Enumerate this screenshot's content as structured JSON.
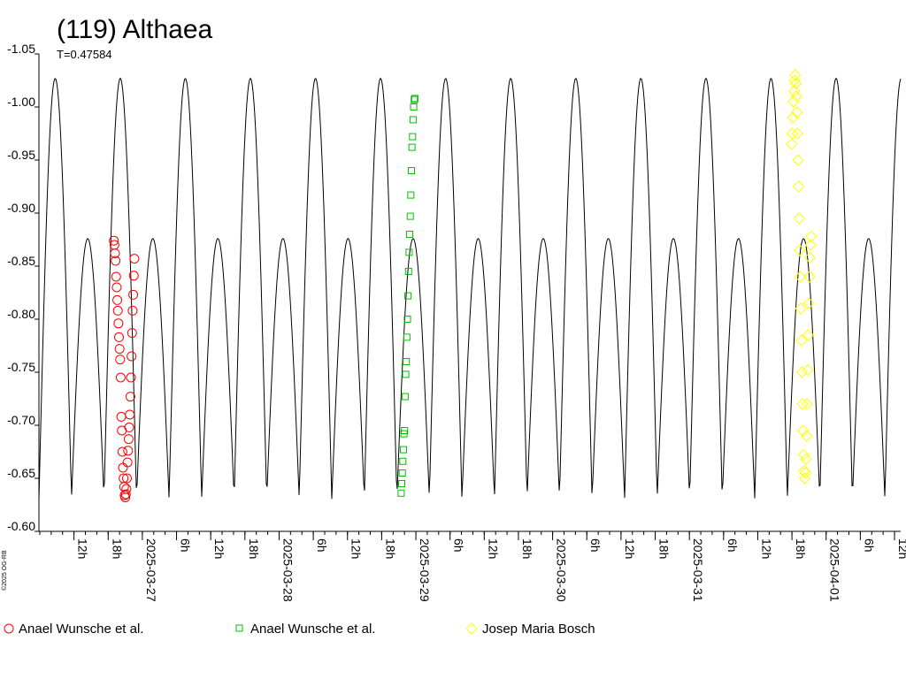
{
  "chart_data": {
    "type": "scatter",
    "title": "(119) Althaea",
    "subtitle": "T=0.47584",
    "copyright": "©2025 OG-RB",
    "y_axis": {
      "ticks": [
        "-1.05",
        "-1.00",
        "-0.95",
        "-0.90",
        "-0.85",
        "-0.80",
        "-0.75",
        "-0.70",
        "-0.65",
        "-0.60"
      ],
      "range": [
        -1.05,
        -0.6
      ],
      "inverted": true
    },
    "x_axis": {
      "range": [
        "2025-03-26T05:51",
        "2025-04-01T13:05"
      ],
      "tick_labels": [
        {
          "t": "2025-03-26T12:00",
          "label": "12h"
        },
        {
          "t": "2025-03-26T18:00",
          "label": "18h"
        },
        {
          "t": "2025-03-27T00:00",
          "label": "2025-03-27"
        },
        {
          "t": "2025-03-27T06:00",
          "label": "6h"
        },
        {
          "t": "2025-03-27T12:00",
          "label": "12h"
        },
        {
          "t": "2025-03-27T18:00",
          "label": "18h"
        },
        {
          "t": "2025-03-28T00:00",
          "label": "2025-03-28"
        },
        {
          "t": "2025-03-28T06:00",
          "label": "6h"
        },
        {
          "t": "2025-03-28T12:00",
          "label": "12h"
        },
        {
          "t": "2025-03-28T18:00",
          "label": "18h"
        },
        {
          "t": "2025-03-29T00:00",
          "label": "2025-03-29"
        },
        {
          "t": "2025-03-29T06:00",
          "label": "6h"
        },
        {
          "t": "2025-03-29T12:00",
          "label": "12h"
        },
        {
          "t": "2025-03-29T18:00",
          "label": "18h"
        },
        {
          "t": "2025-03-30T00:00",
          "label": "2025-03-30"
        },
        {
          "t": "2025-03-30T06:00",
          "label": "6h"
        },
        {
          "t": "2025-03-30T12:00",
          "label": "12h"
        },
        {
          "t": "2025-03-30T18:00",
          "label": "18h"
        },
        {
          "t": "2025-03-31T00:00",
          "label": "2025-03-31"
        },
        {
          "t": "2025-03-31T06:00",
          "label": "6h"
        },
        {
          "t": "2025-03-31T12:00",
          "label": "12h"
        },
        {
          "t": "2025-03-31T18:00",
          "label": "18h"
        },
        {
          "t": "2025-04-01T00:00",
          "label": "2025-04-01"
        },
        {
          "t": "2025-04-01T06:00",
          "label": "6h"
        },
        {
          "t": "2025-04-01T12:00",
          "label": "12h"
        }
      ]
    },
    "model_curve": {
      "period_hours": 11.4202,
      "ref_time": "2025-03-26T05:51",
      "min_value": -0.63,
      "max_value": -1.027,
      "secondary_max_value": -0.876,
      "color": "#000000"
    },
    "series": [
      {
        "name": "Anael Wunsche et al.",
        "marker": "circle",
        "color": "#ff0000",
        "points": [
          {
            "t": "2025-03-26T19:00",
            "y": -0.874
          },
          {
            "t": "2025-03-26T19:06",
            "y": -0.87
          },
          {
            "t": "2025-03-26T19:12",
            "y": -0.862
          },
          {
            "t": "2025-03-26T19:18",
            "y": -0.855
          },
          {
            "t": "2025-03-26T19:24",
            "y": -0.84
          },
          {
            "t": "2025-03-26T19:30",
            "y": -0.83
          },
          {
            "t": "2025-03-26T19:36",
            "y": -0.818
          },
          {
            "t": "2025-03-26T19:42",
            "y": -0.808
          },
          {
            "t": "2025-03-26T19:48",
            "y": -0.796
          },
          {
            "t": "2025-03-26T19:54",
            "y": -0.783
          },
          {
            "t": "2025-03-26T20:00",
            "y": -0.772
          },
          {
            "t": "2025-03-26T20:06",
            "y": -0.762
          },
          {
            "t": "2025-03-26T20:12",
            "y": -0.745
          },
          {
            "t": "2025-03-26T20:18",
            "y": -0.708
          },
          {
            "t": "2025-03-26T20:24",
            "y": -0.695
          },
          {
            "t": "2025-03-26T20:30",
            "y": -0.675
          },
          {
            "t": "2025-03-26T20:36",
            "y": -0.66
          },
          {
            "t": "2025-03-26T20:42",
            "y": -0.65
          },
          {
            "t": "2025-03-26T20:48",
            "y": -0.642
          },
          {
            "t": "2025-03-26T20:54",
            "y": -0.634
          },
          {
            "t": "2025-03-26T21:00",
            "y": -0.632
          },
          {
            "t": "2025-03-26T21:06",
            "y": -0.635
          },
          {
            "t": "2025-03-26T21:12",
            "y": -0.64
          },
          {
            "t": "2025-03-26T21:18",
            "y": -0.65
          },
          {
            "t": "2025-03-26T21:24",
            "y": -0.665
          },
          {
            "t": "2025-03-26T21:30",
            "y": -0.676
          },
          {
            "t": "2025-03-26T21:36",
            "y": -0.687
          },
          {
            "t": "2025-03-26T21:42",
            "y": -0.698
          },
          {
            "t": "2025-03-26T21:48",
            "y": -0.71
          },
          {
            "t": "2025-03-26T21:54",
            "y": -0.727
          },
          {
            "t": "2025-03-26T22:00",
            "y": -0.745
          },
          {
            "t": "2025-03-26T22:06",
            "y": -0.765
          },
          {
            "t": "2025-03-26T22:12",
            "y": -0.787
          },
          {
            "t": "2025-03-26T22:18",
            "y": -0.808
          },
          {
            "t": "2025-03-26T22:24",
            "y": -0.823
          },
          {
            "t": "2025-03-26T22:30",
            "y": -0.841
          },
          {
            "t": "2025-03-26T22:36",
            "y": -0.857
          }
        ]
      },
      {
        "name": "Anael Wunsche et al.",
        "marker": "square",
        "color": "#00c000",
        "points": [
          {
            "t": "2025-03-28T21:25",
            "y": -0.636
          },
          {
            "t": "2025-03-28T21:31",
            "y": -0.645
          },
          {
            "t": "2025-03-28T21:37",
            "y": -0.655
          },
          {
            "t": "2025-03-28T21:43",
            "y": -0.666
          },
          {
            "t": "2025-03-28T21:49",
            "y": -0.677
          },
          {
            "t": "2025-03-28T21:55",
            "y": -0.692
          },
          {
            "t": "2025-03-28T22:01",
            "y": -0.695
          },
          {
            "t": "2025-03-28T22:07",
            "y": -0.727
          },
          {
            "t": "2025-03-28T22:13",
            "y": -0.748
          },
          {
            "t": "2025-03-28T22:19",
            "y": -0.76
          },
          {
            "t": "2025-03-28T22:25",
            "y": -0.783
          },
          {
            "t": "2025-03-28T22:31",
            "y": -0.8
          },
          {
            "t": "2025-03-28T22:37",
            "y": -0.822
          },
          {
            "t": "2025-03-28T22:43",
            "y": -0.845
          },
          {
            "t": "2025-03-28T22:49",
            "y": -0.863
          },
          {
            "t": "2025-03-28T22:55",
            "y": -0.88
          },
          {
            "t": "2025-03-28T23:01",
            "y": -0.897
          },
          {
            "t": "2025-03-28T23:07",
            "y": -0.917
          },
          {
            "t": "2025-03-28T23:13",
            "y": -0.94
          },
          {
            "t": "2025-03-28T23:19",
            "y": -0.962
          },
          {
            "t": "2025-03-28T23:25",
            "y": -0.972
          },
          {
            "t": "2025-03-28T23:31",
            "y": -0.988
          },
          {
            "t": "2025-03-28T23:37",
            "y": -1.0
          },
          {
            "t": "2025-03-28T23:43",
            "y": -1.007
          },
          {
            "t": "2025-03-28T23:49",
            "y": -1.008
          }
        ]
      },
      {
        "name": "Josep Maria Bosch",
        "marker": "diamond",
        "color": "#ffff00",
        "points": [
          {
            "t": "2025-03-31T17:58",
            "y": -0.965
          },
          {
            "t": "2025-03-31T18:04",
            "y": -0.975
          },
          {
            "t": "2025-03-31T18:10",
            "y": -0.99
          },
          {
            "t": "2025-03-31T18:16",
            "y": -1.005
          },
          {
            "t": "2025-03-31T18:22",
            "y": -1.015
          },
          {
            "t": "2025-03-31T18:28",
            "y": -1.025
          },
          {
            "t": "2025-03-31T18:34",
            "y": -1.03
          },
          {
            "t": "2025-03-31T18:40",
            "y": -1.022
          },
          {
            "t": "2025-03-31T18:46",
            "y": -1.01
          },
          {
            "t": "2025-03-31T18:52",
            "y": -0.995
          },
          {
            "t": "2025-03-31T18:58",
            "y": -0.975
          },
          {
            "t": "2025-03-31T19:04",
            "y": -0.95
          },
          {
            "t": "2025-03-31T19:10",
            "y": -0.925
          },
          {
            "t": "2025-03-31T19:16",
            "y": -0.895
          },
          {
            "t": "2025-03-31T19:22",
            "y": -0.865
          },
          {
            "t": "2025-03-31T19:28",
            "y": -0.84
          },
          {
            "t": "2025-03-31T19:34",
            "y": -0.81
          },
          {
            "t": "2025-03-31T19:40",
            "y": -0.78
          },
          {
            "t": "2025-03-31T19:46",
            "y": -0.75
          },
          {
            "t": "2025-03-31T19:52",
            "y": -0.72
          },
          {
            "t": "2025-03-31T19:58",
            "y": -0.695
          },
          {
            "t": "2025-03-31T20:04",
            "y": -0.672
          },
          {
            "t": "2025-03-31T20:10",
            "y": -0.657
          },
          {
            "t": "2025-03-31T20:16",
            "y": -0.65
          },
          {
            "t": "2025-03-31T20:22",
            "y": -0.655
          },
          {
            "t": "2025-03-31T20:28",
            "y": -0.668
          },
          {
            "t": "2025-03-31T20:34",
            "y": -0.69
          },
          {
            "t": "2025-03-31T20:40",
            "y": -0.72
          },
          {
            "t": "2025-03-31T20:46",
            "y": -0.752
          },
          {
            "t": "2025-03-31T20:52",
            "y": -0.785
          },
          {
            "t": "2025-03-31T20:58",
            "y": -0.815
          },
          {
            "t": "2025-03-31T21:04",
            "y": -0.84
          },
          {
            "t": "2025-03-31T21:10",
            "y": -0.858
          },
          {
            "t": "2025-03-31T21:16",
            "y": -0.87
          },
          {
            "t": "2025-03-31T21:22",
            "y": -0.878
          }
        ]
      }
    ],
    "legend_placement": "bottom",
    "grid": false
  }
}
